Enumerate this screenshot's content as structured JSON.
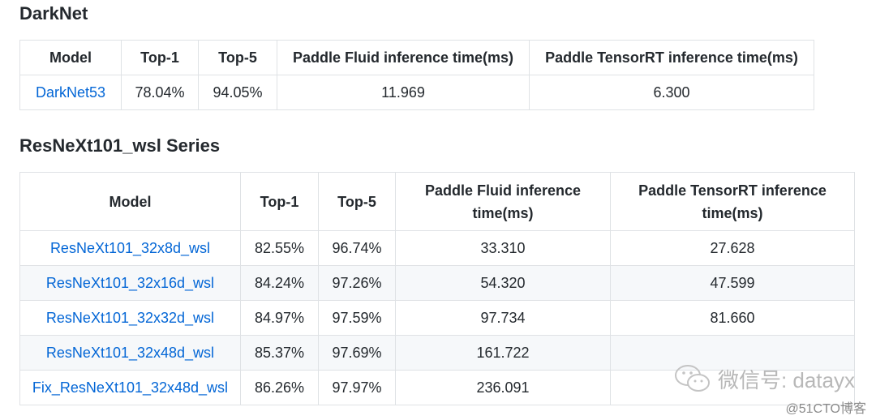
{
  "darknet": {
    "title": "DarkNet",
    "headers": [
      "Model",
      "Top-1",
      "Top-5",
      "Paddle Fluid inference time(ms)",
      "Paddle TensorRT inference time(ms)"
    ],
    "rows": [
      [
        "DarkNet53",
        "78.04%",
        "94.05%",
        "11.969",
        "6.300"
      ]
    ]
  },
  "resnext": {
    "title": "ResNeXt101_wsl Series",
    "headers": [
      "Model",
      "Top-1",
      "Top-5",
      "Paddle Fluid inference time(ms)",
      "Paddle TensorRT inference time(ms)"
    ],
    "rows": [
      [
        "ResNeXt101_32x8d_wsl",
        "82.55%",
        "96.74%",
        "33.310",
        "27.628"
      ],
      [
        "ResNeXt101_32x16d_wsl",
        "84.24%",
        "97.26%",
        "54.320",
        "47.599"
      ],
      [
        "ResNeXt101_32x32d_wsl",
        "84.97%",
        "97.59%",
        "97.734",
        "81.660"
      ],
      [
        "ResNeXt101_32x48d_wsl",
        "85.37%",
        "97.69%",
        "161.722",
        ""
      ],
      [
        "Fix_ResNeXt101_32x48d_wsl",
        "86.26%",
        "97.97%",
        "236.091",
        ""
      ]
    ]
  },
  "watermark": {
    "text": "微信号: datayx",
    "sub": "@51CTO博客"
  },
  "colors": {
    "link": "#0366d6",
    "border": "#dfe2e5",
    "stripe": "#f6f8fa",
    "text": "#24292e"
  }
}
